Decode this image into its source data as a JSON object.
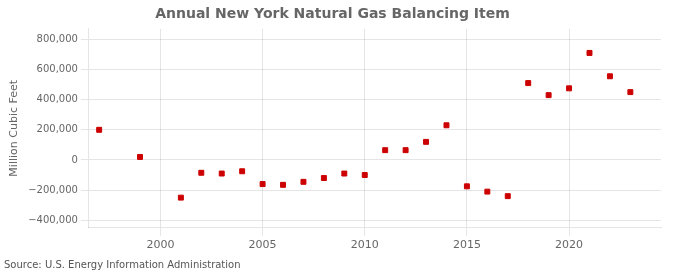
{
  "chart_data": {
    "type": "scatter",
    "title": "Annual New York Natural Gas Balancing Item",
    "ylabel": "Million Cubic Feet",
    "source": "Source: U.S. Energy Information Administration",
    "x": [
      1997,
      1999,
      2001,
      2002,
      2003,
      2004,
      2005,
      2006,
      2007,
      2008,
      2009,
      2010,
      2011,
      2012,
      2013,
      2014,
      2015,
      2016,
      2017,
      2018,
      2019,
      2020,
      2021,
      2022,
      2023
    ],
    "values": [
      200000,
      20000,
      -250000,
      -85000,
      -90000,
      -75000,
      -160000,
      -165000,
      -145000,
      -120000,
      -90000,
      -100000,
      65000,
      65000,
      120000,
      230000,
      -175000,
      -210000,
      -240000,
      510000,
      430000,
      475000,
      710000,
      555000,
      450000
    ],
    "color": "#cc0000",
    "marker": "square",
    "xlim": [
      1996.5,
      2024.5
    ],
    "xticks": [
      2000,
      2005,
      2010,
      2015,
      2020
    ],
    "ylim": [
      -450000,
      870000
    ],
    "yticks": [
      {
        "value": -400000,
        "label": "−400,000"
      },
      {
        "value": -200000,
        "label": "−200,000"
      },
      0,
      {
        "value": 200000,
        "label": "200,000"
      },
      {
        "value": 400000,
        "label": "400,000"
      },
      {
        "value": 600000,
        "label": "600,000"
      },
      {
        "value": 800000,
        "label": "800,000"
      }
    ],
    "grid": true
  }
}
